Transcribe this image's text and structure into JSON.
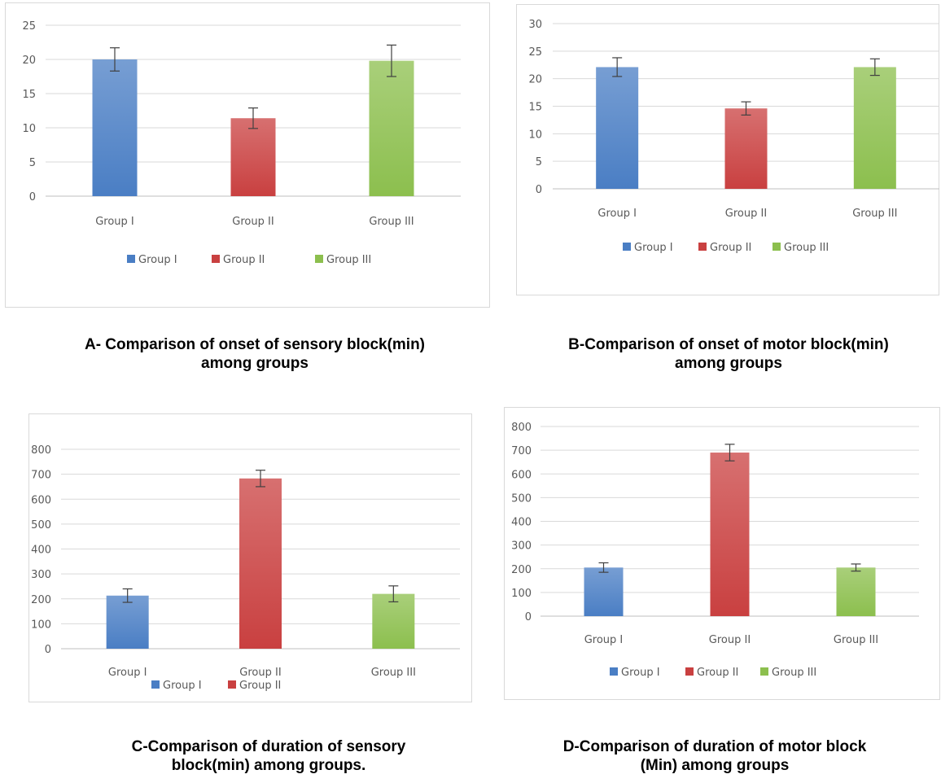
{
  "chart_data": [
    {
      "type": "bar",
      "categories": [
        "Group I",
        "Group II",
        "Group III"
      ],
      "values": [
        20.0,
        11.4,
        19.8
      ],
      "error": [
        1.7,
        1.5,
        2.3
      ],
      "colors": [
        "#4a7ec4",
        "#c94040",
        "#8cbf4e"
      ],
      "ylim": [
        0,
        25
      ],
      "yticks": [
        "0",
        "5",
        "10",
        "15",
        "20",
        "25"
      ],
      "legend": [
        "Group I",
        "Group II",
        "Group III"
      ],
      "legend_position": "bottom",
      "grid": true,
      "caption": [
        "A- Comparison of onset of sensory block(min)",
        "among groups"
      ]
    },
    {
      "type": "bar",
      "categories": [
        "Group I",
        "Group II",
        "Group III"
      ],
      "values": [
        22.1,
        14.6,
        22.1
      ],
      "error": [
        1.7,
        1.2,
        1.5
      ],
      "colors": [
        "#4a7ec4",
        "#c94040",
        "#8cbf4e"
      ],
      "ylim": [
        0,
        30
      ],
      "yticks": [
        "0",
        "5",
        "10",
        "15",
        "20",
        "25",
        "30"
      ],
      "legend": [
        "Group I",
        "Group II",
        "Group III"
      ],
      "legend_position": "bottom",
      "grid": true,
      "caption": [
        "B-Comparison of onset of motor block(min)",
        "among groups"
      ]
    },
    {
      "type": "bar",
      "categories": [
        "Group I",
        "Group II",
        "Group III"
      ],
      "values": [
        213,
        683,
        220
      ],
      "error": [
        27,
        33,
        32
      ],
      "colors": [
        "#4a7ec4",
        "#c94040",
        "#8cbf4e"
      ],
      "ylim": [
        0,
        800
      ],
      "yticks": [
        "0",
        "100",
        "200",
        "300",
        "400",
        "500",
        "600",
        "700",
        "800"
      ],
      "legend": [
        "Group I",
        "Group II"
      ],
      "legend_position": "bottom",
      "grid": true,
      "caption": [
        "C-Comparison of duration of sensory",
        "block(min) among groups."
      ]
    },
    {
      "type": "bar",
      "categories": [
        "Group I",
        "Group II",
        "Group III"
      ],
      "values": [
        205,
        690,
        205
      ],
      "error": [
        20,
        35,
        15
      ],
      "colors": [
        "#4a7ec4",
        "#c94040",
        "#8cbf4e"
      ],
      "ylim": [
        0,
        800
      ],
      "yticks": [
        "0",
        "100",
        "200",
        "300",
        "400",
        "500",
        "600",
        "700",
        "800"
      ],
      "legend": [
        "Group I",
        "Group II",
        "Group III"
      ],
      "legend_position": "bottom",
      "grid": true,
      "caption": [
        "D-Comparison of duration of motor block",
        "(Min) among groups"
      ]
    }
  ]
}
